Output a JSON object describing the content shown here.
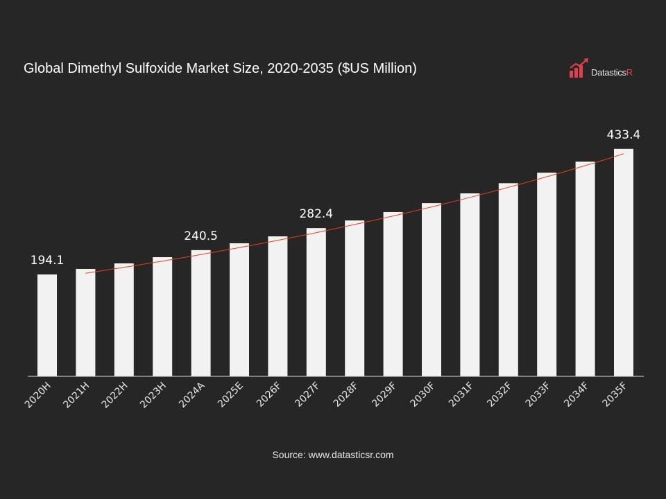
{
  "chart_data": {
    "type": "bar",
    "title": "Global Dimethyl Sulfoxide Market Size, 2020-2035 ($US Million)",
    "categories": [
      "2020H",
      "2021H",
      "2022H",
      "2023H",
      "2024A",
      "2025E",
      "2026F",
      "2027F",
      "2028F",
      "2029F",
      "2030F",
      "2031F",
      "2032F",
      "2033F",
      "2034F",
      "2035F"
    ],
    "values": [
      194.1,
      204.7,
      215.2,
      227.1,
      240.5,
      253.5,
      266.7,
      282.4,
      297.0,
      313.0,
      330.0,
      348.6,
      368.0,
      388.0,
      409.0,
      433.4
    ],
    "data_labels": {
      "0": "194.1",
      "4": "240.5",
      "7": "282.4",
      "15": "433.4"
    },
    "ylim": [
      0,
      450
    ],
    "grid": false,
    "trendline": true,
    "colors": {
      "bar": "#f2f2f2",
      "trend": "#e8401c",
      "background": "#262626",
      "axis": "#d9d9d9"
    }
  },
  "logo": {
    "text_main": "Datastics",
    "text_accent": "R",
    "color": "#e0404a"
  },
  "source": "Source: www.datasticsr.com"
}
